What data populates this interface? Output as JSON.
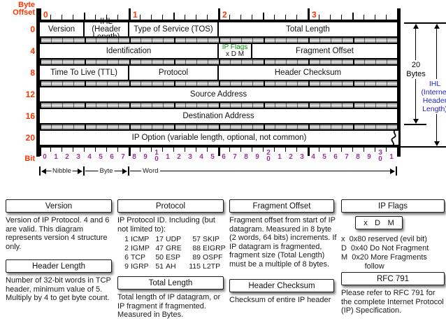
{
  "colors": {
    "red": "#ff3300",
    "blue": "#2222cc",
    "green": "#009900",
    "purple": "#993399"
  },
  "diagram": {
    "byte_offset_label": {
      "line1": "Byte",
      "line2": "Offset"
    },
    "byte_ruler": [
      "0",
      "1",
      "2",
      "3"
    ],
    "row_offsets": [
      "0",
      "4",
      "8",
      "12",
      "16",
      "20"
    ],
    "rows": [
      {
        "cells": [
          {
            "label": "Version"
          },
          {
            "label": "IHL (Header Length)"
          },
          {
            "label": "Type of Service (TOS)"
          },
          {
            "label": "Total Length"
          }
        ]
      },
      {
        "cells": [
          {
            "label": "Identification"
          },
          {
            "label": "IP Flags",
            "sub": "x  D  M"
          },
          {
            "label": "Fragment Offset"
          }
        ]
      },
      {
        "cells": [
          {
            "label": "Time To Live (TTL)"
          },
          {
            "label": "Protocol"
          },
          {
            "label": "Header Checksum"
          }
        ]
      },
      {
        "cells": [
          {
            "label": "Source Address"
          }
        ]
      },
      {
        "cells": [
          {
            "label": "Destination Address"
          }
        ]
      },
      {
        "cells": [
          {
            "label": "IP Option (variable length, optional, not common)"
          }
        ]
      }
    ],
    "bit_label": "Bit",
    "bit_numbers": [
      "0",
      "1",
      "2",
      "3",
      "4",
      "5",
      "6",
      "7",
      "8",
      "9",
      "1|0",
      "1",
      "2",
      "3",
      "4",
      "5",
      "6",
      "7",
      "8",
      "9",
      "2|0",
      "1",
      "2",
      "3",
      "4",
      "5",
      "6",
      "7",
      "8",
      "9",
      "3|0",
      "1"
    ],
    "scale": {
      "nibble": "Nibble",
      "byte": "Byte",
      "word": "Word"
    },
    "right": {
      "bytes_label": {
        "line1": "20",
        "line2": "Bytes"
      },
      "ihl_label": {
        "line1": "IHL",
        "line2": "(Internet",
        "line3": "Header",
        "line4": "Length)"
      }
    }
  },
  "notes": {
    "col1": {
      "title1": "Version",
      "p1": "Version of IP Protocol.  4 and 6 are valid.  This diagram represents version 4 structure only.",
      "title2": "Header Length",
      "p2": "Number of 32-bit words in TCP header, minimum value of 5.  Multiply by 4 to get byte count."
    },
    "col2": {
      "title1": "Protocol",
      "p1": "IP Protocol ID.  Including (but not limited to):",
      "table": [
        [
          "1",
          "ICMP",
          "17",
          "UDP",
          "57",
          "SKIP"
        ],
        [
          "2",
          "IGMP",
          "47",
          "GRE",
          "88",
          "EIGRP"
        ],
        [
          "6",
          "TCP",
          "50",
          "ESP",
          "89",
          "OSPF"
        ],
        [
          "9",
          "IGRP",
          "51",
          "AH",
          "115",
          "L2TP"
        ]
      ],
      "title2": "Total Length",
      "p2": "Total length of IP datagram, or IP fragment if fragmented.  Measured in Bytes."
    },
    "col3": {
      "title1": "Fragment Offset",
      "p1": "Fragment offset from start of IP datagram.  Measured in 8 byte (2 words, 64 bits) increments.  If IP datagram is fragmented, fragment size (Total Length) must be a multiple of 8 bytes.",
      "title2": "Header Checksum",
      "p2": "Checksum of entire IP header"
    },
    "col4": {
      "title1": "IP Flags",
      "flag_letters": [
        "x",
        "D",
        "M"
      ],
      "flags_text": "x  0x80 reserved (evil bit)\nD  0x40 Do Not Fragment\nM  0x20 More Fragments\n           follow",
      "title2": "RFC 791",
      "p2": "Please refer to RFC 791 for the complete Internet Protocol (IP) Specification."
    }
  }
}
